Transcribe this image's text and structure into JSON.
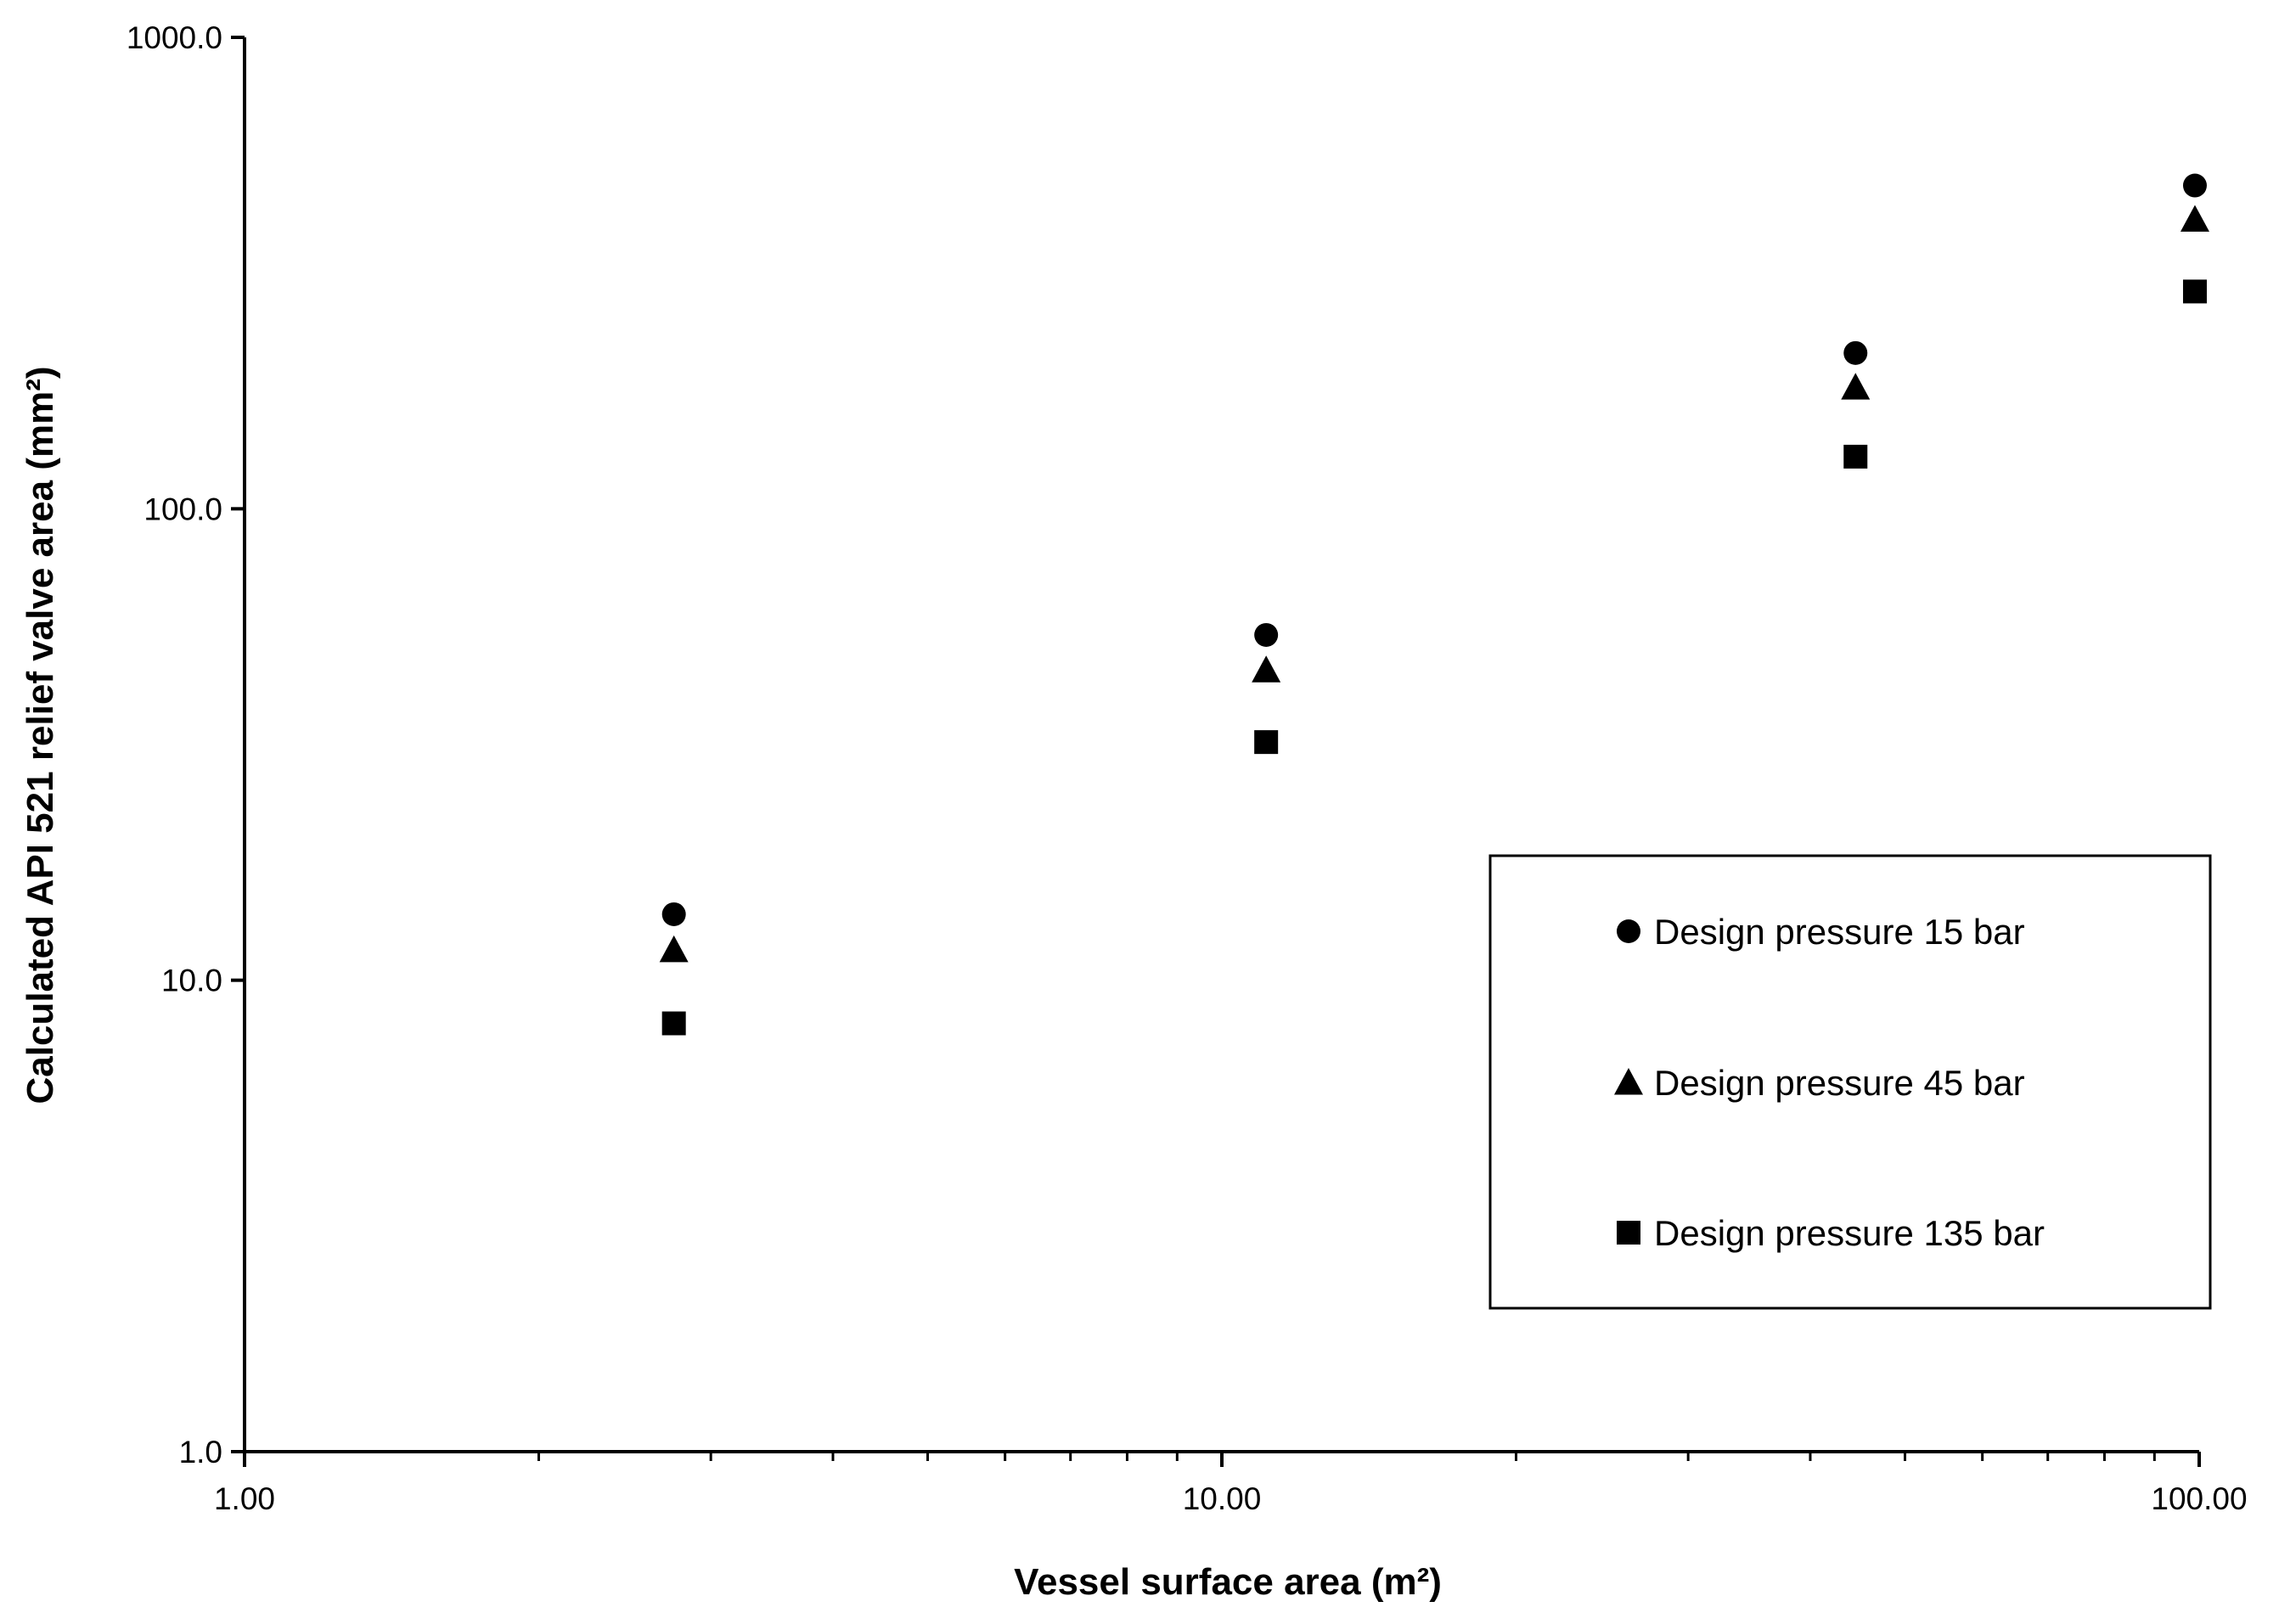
{
  "chart_data": {
    "type": "scatter",
    "xlabel": "Vessel surface area (m²)",
    "ylabel": "Calculated API 521 relief valve area (mm²)",
    "x_scale": "log",
    "y_scale": "log",
    "xlim": [
      1,
      100
    ],
    "ylim": [
      1,
      1000
    ],
    "x_tick_labels": [
      "1.00",
      "10.00",
      "100.00"
    ],
    "y_tick_labels": [
      "1.0",
      "10.0",
      "100.0",
      "1000.0"
    ],
    "grid": false,
    "legend_position": "right",
    "series": [
      {
        "name": "Design pressure 15 bar",
        "marker": "circle",
        "x": [
          2.75,
          11.1,
          44.5,
          99.0
        ],
        "y": [
          13.8,
          54.0,
          214.0,
          485.0
        ]
      },
      {
        "name": "Design pressure 45 bar",
        "marker": "triangle",
        "x": [
          2.75,
          11.1,
          44.5,
          99.0
        ],
        "y": [
          11.6,
          45.5,
          181.0,
          411.0
        ]
      },
      {
        "name": "Design pressure 135 bar",
        "marker": "square",
        "x": [
          2.75,
          11.1,
          44.5,
          99.0
        ],
        "y": [
          8.1,
          32.0,
          129.0,
          289.0
        ]
      }
    ]
  }
}
